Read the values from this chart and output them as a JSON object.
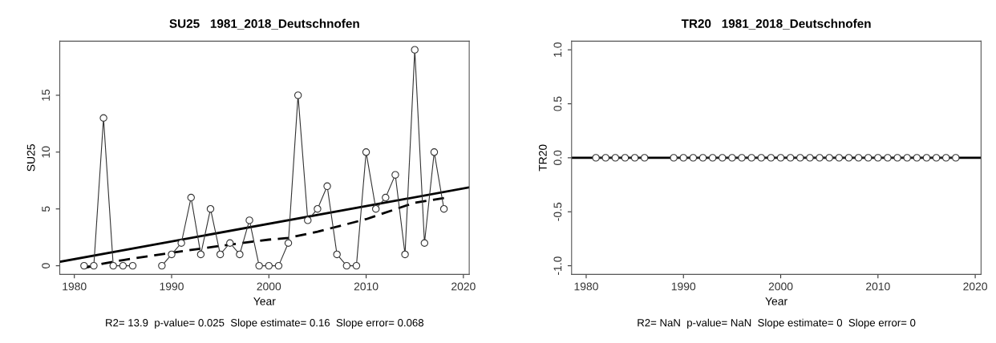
{
  "chart_data": [
    {
      "type": "line",
      "title": "SU25   1981_2018_Deutschnofen",
      "xlabel": "Year",
      "ylabel": "SU25",
      "annotations": [
        "R2= 13.9  p-value= 0.025  Slope estimate= 0.16  Slope error= 0.068"
      ],
      "x": [
        1981,
        1982,
        1983,
        1984,
        1985,
        1986,
        1987,
        1988,
        1989,
        1990,
        1991,
        1992,
        1993,
        1994,
        1995,
        1996,
        1997,
        1998,
        1999,
        2000,
        2001,
        2002,
        2003,
        2004,
        2005,
        2006,
        2007,
        2008,
        2009,
        2010,
        2011,
        2012,
        2013,
        2014,
        2015,
        2016,
        2017,
        2018
      ],
      "series": [
        {
          "color": "#333333",
          "marker": "circle",
          "line_style": "solid",
          "values": [
            0,
            0,
            13,
            0,
            0,
            0,
            null,
            null,
            0,
            1,
            2,
            6,
            1,
            5,
            1,
            2,
            1,
            4,
            0,
            0,
            0,
            2,
            15,
            4,
            5,
            7,
            1,
            0,
            0,
            10,
            5,
            6,
            8,
            1,
            19,
            2,
            10,
            5
          ]
        },
        {
          "color": "#000000",
          "marker": "none",
          "line_style": "solid",
          "x": [
            1978.5,
            2020.6
          ],
          "values": [
            0.35,
            6.9
          ]
        },
        {
          "color": "#000000",
          "marker": "none",
          "line_style": "dashed",
          "x": [
            1981,
            1983,
            1985,
            1990,
            1995,
            2000,
            2002,
            2005,
            2010,
            2015,
            2018
          ],
          "values": [
            -0.2,
            0.2,
            0.5,
            1.15,
            1.75,
            2.3,
            2.45,
            3.0,
            4.1,
            5.55,
            5.95
          ]
        }
      ],
      "xlim": [
        1978.5,
        2020.6
      ],
      "xticks": [
        1980,
        1990,
        2000,
        2010,
        2020
      ],
      "ylim": [
        -0.76,
        19.76
      ],
      "yticks": [
        0,
        5,
        10,
        15
      ],
      "grid": false,
      "legend": false
    },
    {
      "type": "line",
      "title": "TR20   1981_2018_Deutschnofen",
      "xlabel": "Year",
      "ylabel": "TR20",
      "annotations": [
        "R2= NaN  p-value= NaN  Slope estimate= 0  Slope error= 0"
      ],
      "x": [
        1981,
        1982,
        1983,
        1984,
        1985,
        1986,
        1987,
        1988,
        1989,
        1990,
        1991,
        1992,
        1993,
        1994,
        1995,
        1996,
        1997,
        1998,
        1999,
        2000,
        2001,
        2002,
        2003,
        2004,
        2005,
        2006,
        2007,
        2008,
        2009,
        2010,
        2011,
        2012,
        2013,
        2014,
        2015,
        2016,
        2017,
        2018
      ],
      "series": [
        {
          "color": "#333333",
          "marker": "circle",
          "line_style": "solid",
          "values": [
            0,
            0,
            0,
            0,
            0,
            0,
            null,
            null,
            0,
            0,
            0,
            0,
            0,
            0,
            0,
            0,
            0,
            0,
            0,
            0,
            0,
            0,
            0,
            0,
            0,
            0,
            0,
            0,
            0,
            0,
            0,
            0,
            0,
            0,
            0,
            0,
            0,
            0
          ]
        },
        {
          "color": "#000000",
          "marker": "none",
          "line_style": "solid",
          "x": [
            1978.5,
            2020.6
          ],
          "values": [
            0,
            0
          ]
        }
      ],
      "xlim": [
        1978.5,
        2020.6
      ],
      "xticks": [
        1980,
        1990,
        2000,
        2010,
        2020
      ],
      "ylim": [
        -1.08,
        1.08
      ],
      "yticks": [
        {
          "value": -1,
          "label": "-1.0"
        },
        {
          "value": -0.5,
          "label": "-0.5"
        },
        {
          "value": 0,
          "label": "0.0"
        },
        {
          "value": 0.5,
          "label": "0.5"
        },
        {
          "value": 1,
          "label": "1.0"
        }
      ],
      "grid": false,
      "legend": false
    }
  ]
}
